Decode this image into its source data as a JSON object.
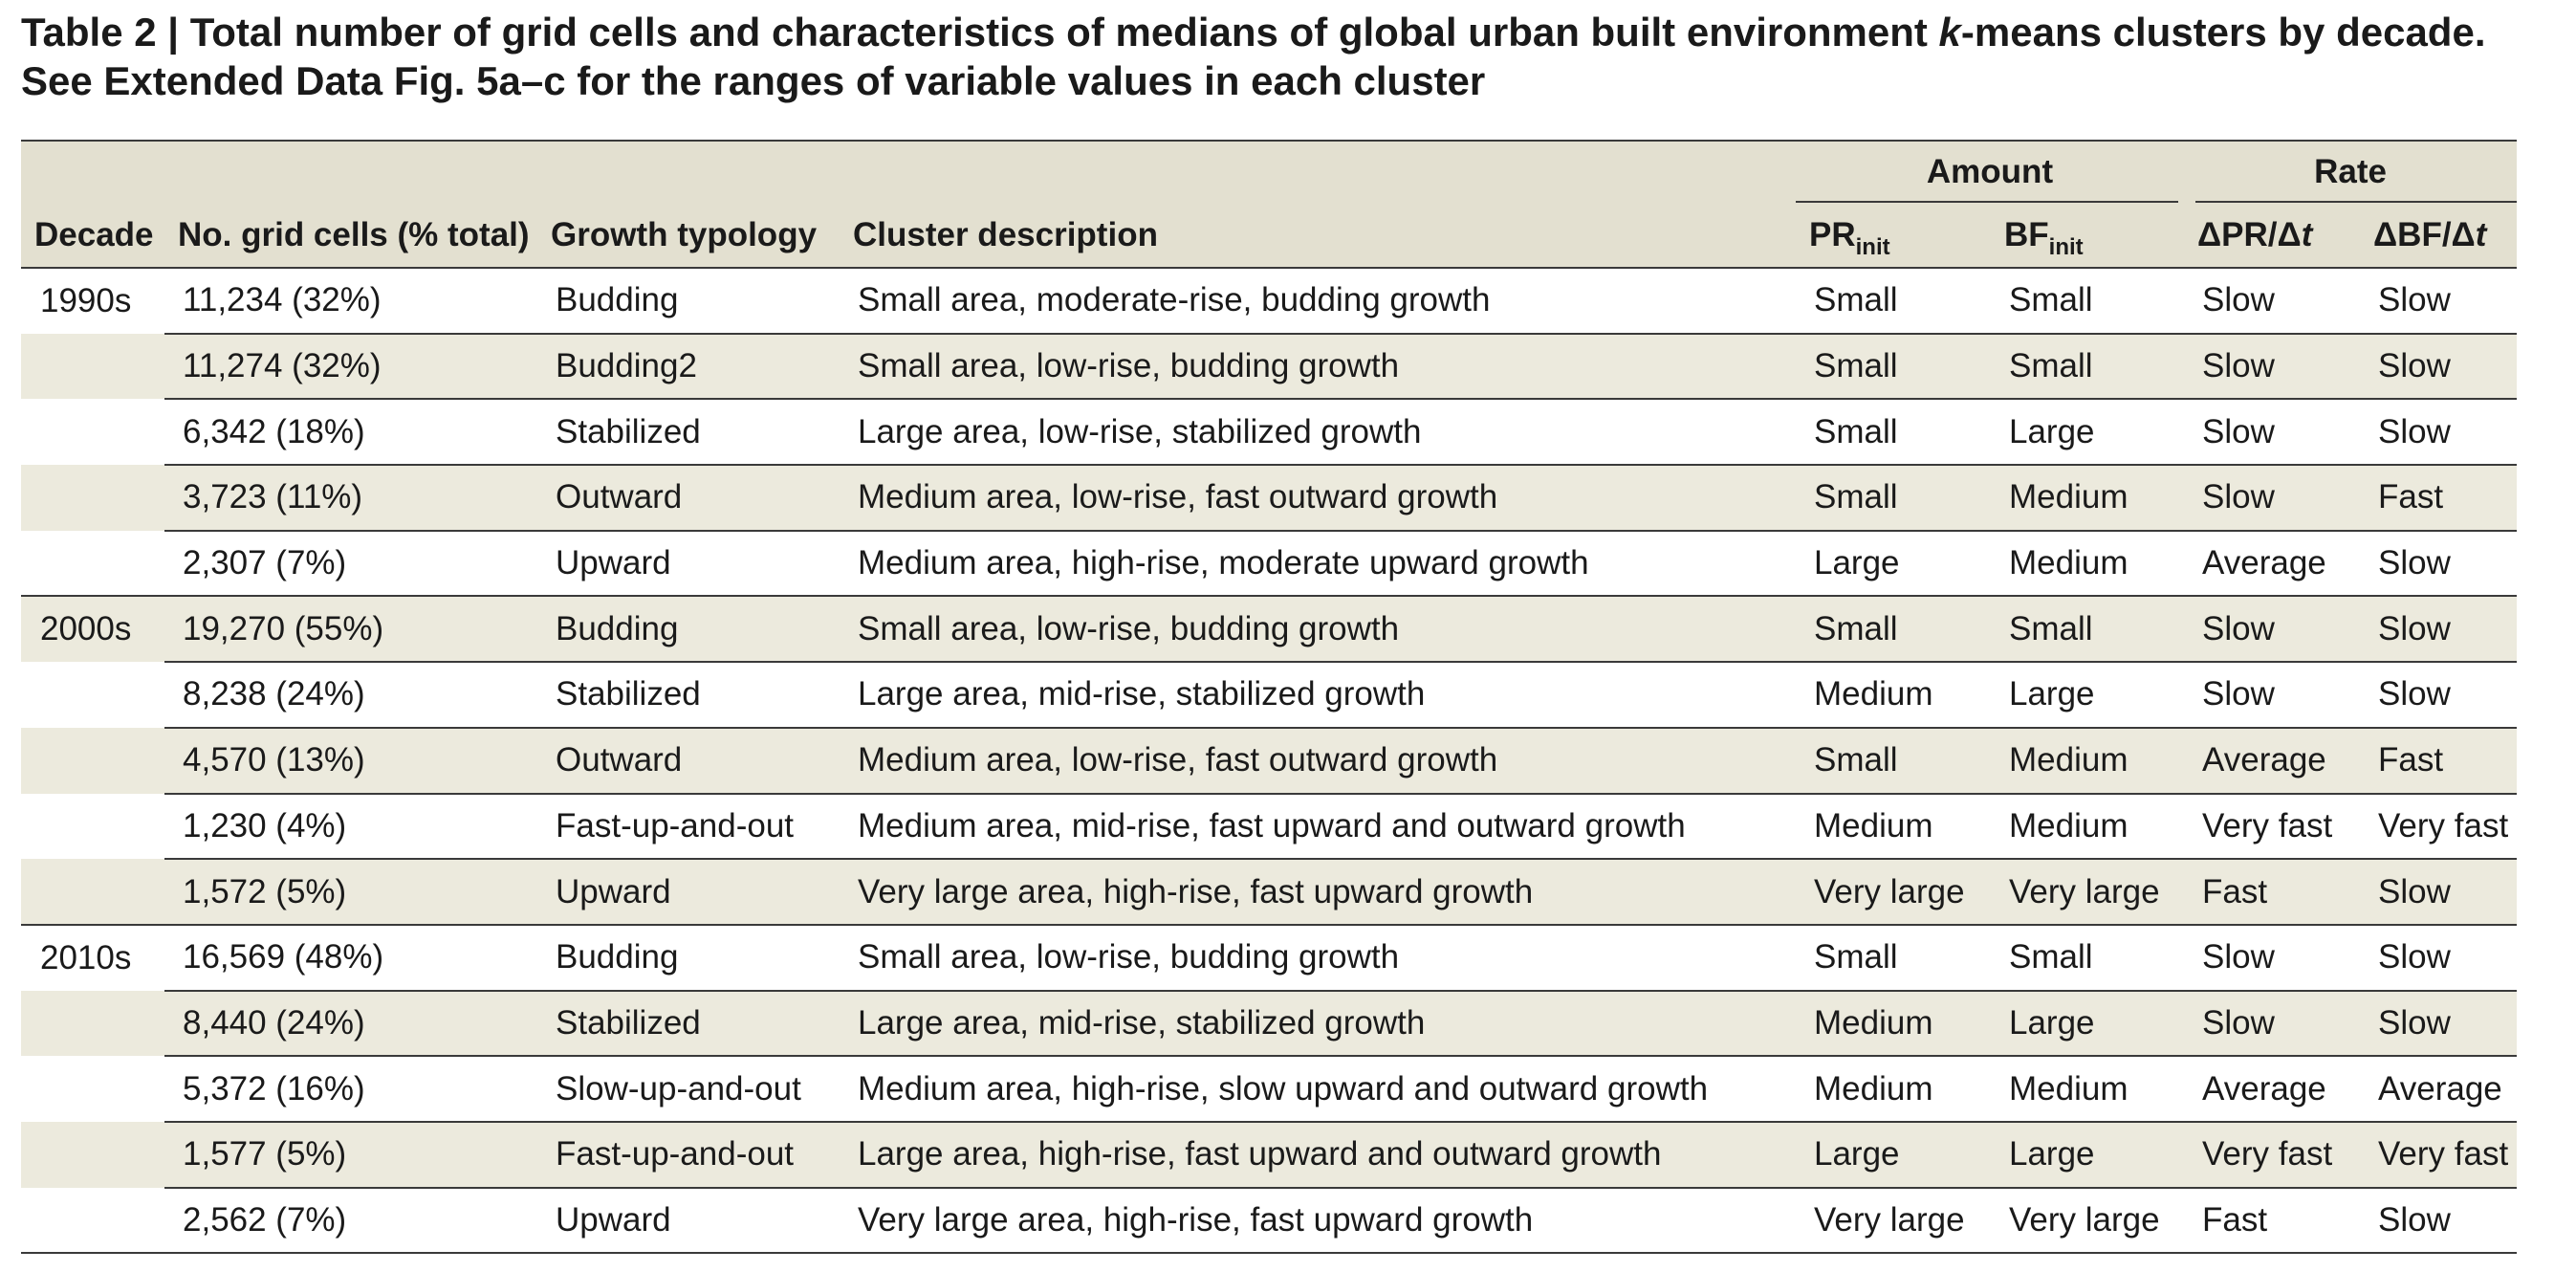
{
  "caption": {
    "part1": "Table 2 | Total number of grid cells and characteristics of medians of global urban built environment ",
    "k": "k",
    "part2": "-means clusters by decade. See Extended Data Fig. 5a–c for the ranges of variable values in each cluster"
  },
  "header": {
    "amount": "Amount",
    "rate": "Rate",
    "decade": "Decade",
    "grid_cells": "No. grid cells (% total)",
    "typology": "Growth typology",
    "description": "Cluster description",
    "pr_init": "PR",
    "bf_init": "BF",
    "init_sub": "init",
    "dpr_a": "ΔPR/Δ",
    "dbf_a": "ΔBF/Δ",
    "t": "t"
  },
  "rows": [
    {
      "decade": "1990s",
      "cells": "11,234 (32%)",
      "typology": "Budding",
      "description": "Small area, moderate-rise, budding growth",
      "pr": "Small",
      "bf": "Small",
      "dpr": "Slow",
      "dbf": "Slow"
    },
    {
      "decade": "",
      "cells": "11,274 (32%)",
      "typology": "Budding2",
      "description": "Small area, low-rise, budding growth",
      "pr": "Small",
      "bf": "Small",
      "dpr": "Slow",
      "dbf": "Slow"
    },
    {
      "decade": "",
      "cells": "6,342 (18%)",
      "typology": "Stabilized",
      "description": "Large area, low-rise, stabilized growth",
      "pr": "Small",
      "bf": "Large",
      "dpr": "Slow",
      "dbf": "Slow"
    },
    {
      "decade": "",
      "cells": "3,723 (11%)",
      "typology": "Outward",
      "description": "Medium area, low-rise, fast outward growth",
      "pr": "Small",
      "bf": "Medium",
      "dpr": "Slow",
      "dbf": "Fast"
    },
    {
      "decade": "",
      "cells": "2,307 (7%)",
      "typology": "Upward",
      "description": "Medium area, high-rise, moderate upward growth",
      "pr": "Large",
      "bf": "Medium",
      "dpr": "Average",
      "dbf": "Slow"
    },
    {
      "decade": "2000s",
      "cells": "19,270 (55%)",
      "typology": "Budding",
      "description": "Small area, low-rise, budding growth",
      "pr": "Small",
      "bf": "Small",
      "dpr": "Slow",
      "dbf": "Slow"
    },
    {
      "decade": "",
      "cells": "8,238 (24%)",
      "typology": "Stabilized",
      "description": "Large area, mid-rise, stabilized growth",
      "pr": "Medium",
      "bf": "Large",
      "dpr": "Slow",
      "dbf": "Slow"
    },
    {
      "decade": "",
      "cells": "4,570 (13%)",
      "typology": "Outward",
      "description": "Medium area, low-rise, fast outward growth",
      "pr": "Small",
      "bf": "Medium",
      "dpr": "Average",
      "dbf": "Fast"
    },
    {
      "decade": "",
      "cells": "1,230 (4%)",
      "typology": "Fast-up-and-out",
      "description": "Medium area, mid-rise, fast upward and outward growth",
      "pr": "Medium",
      "bf": "Medium",
      "dpr": "Very fast",
      "dbf": "Very fast"
    },
    {
      "decade": "",
      "cells": "1,572 (5%)",
      "typology": "Upward",
      "description": "Very large area, high-rise, fast upward growth",
      "pr": "Very large",
      "bf": "Very large",
      "dpr": "Fast",
      "dbf": "Slow"
    },
    {
      "decade": "2010s",
      "cells": "16,569 (48%)",
      "typology": "Budding",
      "description": "Small area, low-rise, budding growth",
      "pr": "Small",
      "bf": "Small",
      "dpr": "Slow",
      "dbf": "Slow"
    },
    {
      "decade": "",
      "cells": "8,440 (24%)",
      "typology": "Stabilized",
      "description": "Large area, mid-rise, stabilized growth",
      "pr": "Medium",
      "bf": "Large",
      "dpr": "Slow",
      "dbf": "Slow"
    },
    {
      "decade": "",
      "cells": "5,372 (16%)",
      "typology": "Slow-up-and-out",
      "description": "Medium area, high-rise, slow upward and outward growth",
      "pr": "Medium",
      "bf": "Medium",
      "dpr": "Average",
      "dbf": "Average"
    },
    {
      "decade": "",
      "cells": "1,577 (5%)",
      "typology": "Fast-up-and-out",
      "description": "Large area, high-rise, fast upward and outward growth",
      "pr": "Large",
      "bf": "Large",
      "dpr": "Very fast",
      "dbf": "Very fast"
    },
    {
      "decade": "",
      "cells": "2,562 (7%)",
      "typology": "Upward",
      "description": "Very large area, high-rise, fast upward growth",
      "pr": "Very large",
      "bf": "Very large",
      "dpr": "Fast",
      "dbf": "Slow"
    }
  ]
}
